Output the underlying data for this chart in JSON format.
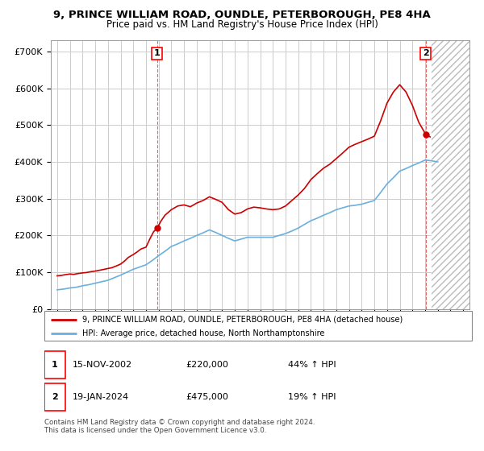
{
  "title1": "9, PRINCE WILLIAM ROAD, OUNDLE, PETERBOROUGH, PE8 4HA",
  "title2": "Price paid vs. HM Land Registry's House Price Index (HPI)",
  "ytick_labels": [
    "£0",
    "£100K",
    "£200K",
    "£300K",
    "£400K",
    "£500K",
    "£600K",
    "£700K"
  ],
  "yticks": [
    0,
    100000,
    200000,
    300000,
    400000,
    500000,
    600000,
    700000
  ],
  "sale1_date": 2002.88,
  "sale1_price": 220000,
  "sale2_date": 2024.05,
  "sale2_price": 475000,
  "legend_line1": "9, PRINCE WILLIAM ROAD, OUNDLE, PETERBOROUGH, PE8 4HA (detached house)",
  "legend_line2": "HPI: Average price, detached house, North Northamptonshire",
  "row1_num": "1",
  "row1_date": "15-NOV-2002",
  "row1_price": "£220,000",
  "row1_hpi": "44% ↑ HPI",
  "row2_num": "2",
  "row2_date": "19-JAN-2024",
  "row2_price": "£475,000",
  "row2_hpi": "19% ↑ HPI",
  "footer": "Contains HM Land Registry data © Crown copyright and database right 2024.\nThis data is licensed under the Open Government Licence v3.0.",
  "hpi_color": "#6ab0de",
  "price_color": "#cc0000",
  "grid_color": "#cccccc",
  "hpi_years": [
    1995,
    1995.5,
    1996,
    1996.5,
    1997,
    1997.5,
    1998,
    1998.5,
    1999,
    1999.5,
    2000,
    2000.5,
    2001,
    2001.5,
    2002,
    2002.5,
    2003,
    2003.5,
    2004,
    2004.5,
    2005,
    2005.5,
    2006,
    2006.5,
    2007,
    2007.5,
    2008,
    2008.5,
    2009,
    2009.5,
    2010,
    2010.5,
    2011,
    2011.5,
    2012,
    2012.5,
    2013,
    2013.5,
    2014,
    2014.5,
    2015,
    2015.5,
    2016,
    2016.5,
    2017,
    2017.5,
    2018,
    2018.5,
    2019,
    2019.5,
    2020,
    2020.5,
    2021,
    2021.5,
    2022,
    2022.5,
    2023,
    2023.5,
    2024,
    2024.5,
    2025
  ],
  "hpi_values": [
    52000,
    54000,
    57000,
    59000,
    63000,
    66000,
    70000,
    74000,
    78000,
    85000,
    92000,
    100000,
    108000,
    114000,
    120000,
    132000,
    145000,
    157000,
    170000,
    177000,
    185000,
    192000,
    200000,
    207000,
    215000,
    208000,
    200000,
    192000,
    185000,
    190000,
    195000,
    195000,
    195000,
    195000,
    195000,
    200000,
    205000,
    212000,
    220000,
    230000,
    240000,
    247000,
    255000,
    262000,
    270000,
    275000,
    280000,
    282000,
    285000,
    290000,
    295000,
    317000,
    340000,
    357000,
    375000,
    382000,
    390000,
    397000,
    405000,
    403000,
    400000
  ],
  "price_years": [
    1995.0,
    1995.3,
    1995.6,
    1996.0,
    1996.3,
    1996.6,
    1997.0,
    1997.3,
    1997.6,
    1998.0,
    1998.3,
    1998.6,
    1999.0,
    1999.3,
    1999.6,
    2000.0,
    2000.3,
    2000.6,
    2001.0,
    2001.3,
    2001.6,
    2002.0,
    2002.3,
    2002.6,
    2002.88,
    2003.2,
    2003.5,
    2004.0,
    2004.5,
    2005.0,
    2005.5,
    2006.0,
    2006.5,
    2007.0,
    2007.5,
    2008.0,
    2008.5,
    2009.0,
    2009.5,
    2010.0,
    2010.5,
    2011.0,
    2011.5,
    2012.0,
    2012.5,
    2013.0,
    2013.5,
    2014.0,
    2014.5,
    2015.0,
    2015.5,
    2016.0,
    2016.5,
    2017.0,
    2017.5,
    2018.0,
    2018.5,
    2019.0,
    2019.5,
    2020.0,
    2020.5,
    2021.0,
    2021.5,
    2022.0,
    2022.5,
    2023.0,
    2023.5,
    2024.05,
    2024.4
  ],
  "price_values": [
    90000,
    91000,
    93000,
    95000,
    94000,
    96000,
    98000,
    99000,
    101000,
    103000,
    105000,
    107000,
    110000,
    112000,
    116000,
    122000,
    130000,
    140000,
    148000,
    155000,
    163000,
    168000,
    190000,
    210000,
    220000,
    240000,
    255000,
    270000,
    280000,
    283000,
    278000,
    288000,
    295000,
    305000,
    298000,
    290000,
    270000,
    258000,
    262000,
    272000,
    277000,
    275000,
    272000,
    270000,
    272000,
    280000,
    295000,
    310000,
    328000,
    352000,
    368000,
    383000,
    394000,
    409000,
    424000,
    440000,
    448000,
    455000,
    462000,
    470000,
    512000,
    560000,
    590000,
    610000,
    590000,
    554000,
    508000,
    475000,
    468000
  ]
}
